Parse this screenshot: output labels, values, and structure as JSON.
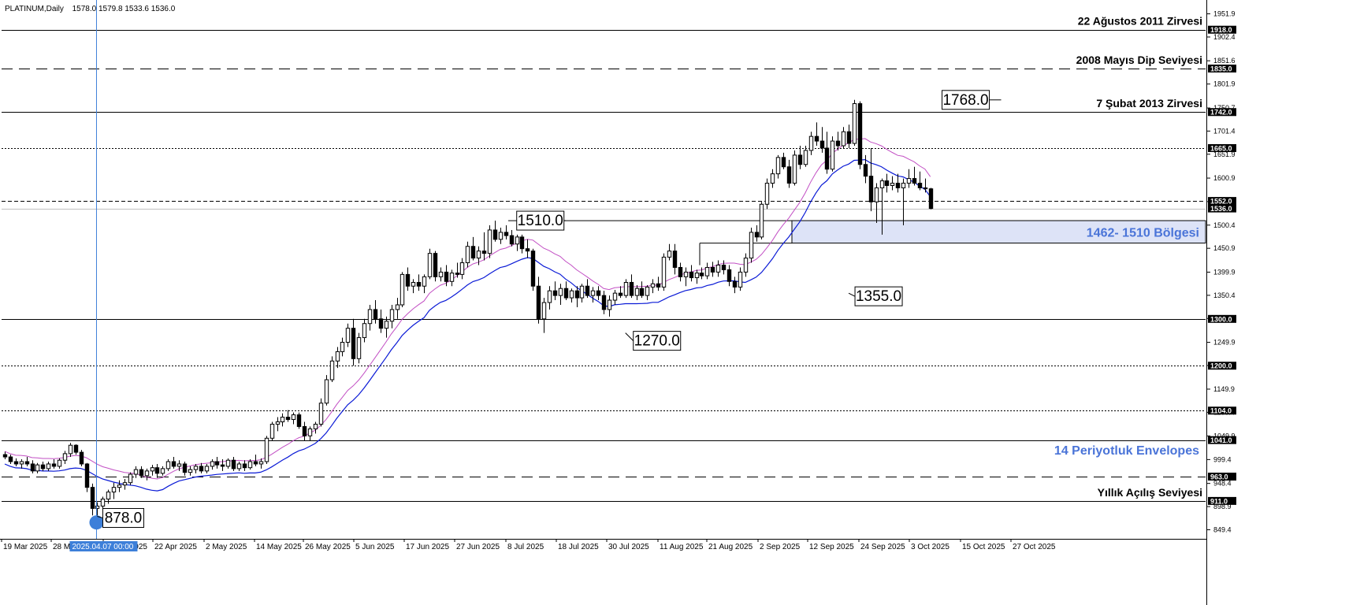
{
  "chart_header": {
    "symbol": "PLATINUM,Daily",
    "ohlc": "1578.0 1579.8 1533.6 1536.0"
  },
  "colors": {
    "envelope_lower": "#0a1ad6",
    "envelope_upper": "#c24fc4",
    "zone_fill": "#dde3f7",
    "blue_label": "#4a74d8",
    "crosshair": "#3d7fd9",
    "tag_bg": "#000000"
  },
  "price_axis": {
    "ticks": [
      "1951.9",
      "1902.4",
      "1851.6",
      "1801.9",
      "1750.7",
      "1701.4",
      "1651.9",
      "1600.9",
      "1550.7",
      "1500.4",
      "1450.9",
      "1399.9",
      "1350.4",
      "1300.9",
      "1249.9",
      "1200.4",
      "1149.9",
      "1100.4",
      "1049.9",
      "999.4",
      "948.4",
      "898.9",
      "849.4"
    ]
  },
  "time_axis": {
    "labels": [
      "19 Mar 2025",
      "28 Mar 2025",
      "10 Apr 2025",
      "22 Apr 2025",
      "2 May 2025",
      "14 May 2025",
      "26 May 2025",
      "5 Jun 2025",
      "17 Jun 2025",
      "27 Jun 2025",
      "8 Jul 2025",
      "18 Jul 2025",
      "30 Jul 2025",
      "11 Aug 2025",
      "21 Aug 2025",
      "2 Sep 2025",
      "12 Sep 2025",
      "24 Sep 2025",
      "3 Oct 2025",
      "15 Oct 2025",
      "27 Oct 2025"
    ],
    "crosshair_label": "2025.04.07 00:00"
  },
  "levels": [
    {
      "price": 1918.0,
      "label": "1918.0",
      "style": "solid",
      "annotation": "22 Ağustos 2011 Zirvesi"
    },
    {
      "price": 1835.0,
      "label": "1835.0",
      "style": "longdash",
      "annotation": "2008 Mayıs Dip Seviyesi"
    },
    {
      "price": 1742.0,
      "label": "1742.0",
      "style": "solid",
      "annotation": "7 Şubat 2013 Zirvesi"
    },
    {
      "price": 1665.0,
      "label": "1665.0",
      "style": "dotted",
      "annotation": ""
    },
    {
      "price": 1552.0,
      "label": "1552.0",
      "style": "dashed",
      "annotation": ""
    },
    {
      "price": 1536.0,
      "label": "1536.0",
      "style": "current",
      "annotation": ""
    },
    {
      "price": 1300.0,
      "label": "1300.0",
      "style": "solid",
      "annotation": ""
    },
    {
      "price": 1200.0,
      "label": "1200.0",
      "style": "dotted",
      "annotation": ""
    },
    {
      "price": 1104.0,
      "label": "1104.0",
      "style": "dotted",
      "annotation": ""
    },
    {
      "price": 1041.0,
      "label": "1041.0",
      "style": "solid",
      "annotation": ""
    },
    {
      "price": 963.0,
      "label": "963.0",
      "style": "longdash",
      "annotation": ""
    },
    {
      "price": 911.0,
      "label": "911.0",
      "style": "solid",
      "annotation": "Yıllık Açılış Seviyesi"
    }
  ],
  "zone": {
    "from": 1462,
    "to": 1510,
    "label": "1462- 1510 Bölgesi"
  },
  "envelope_label": "14 Periyotluk Envelopes",
  "price_boxes": [
    {
      "text": "1768.0",
      "price": 1768,
      "bar": 183
    },
    {
      "text": "1510.0",
      "price": 1510,
      "bar": 103
    },
    {
      "text": "1355.0",
      "price": 1355,
      "bar": 155
    },
    {
      "text": "1270.0",
      "price": 1270,
      "bar": 114
    },
    {
      "text": "878.0",
      "price": 878,
      "bar": 17
    }
  ],
  "chart_data": {
    "type": "candlestick",
    "title": "PLATINUM,Daily",
    "ylim": [
      830,
      1968
    ],
    "time_range": [
      "2025-03-14",
      "2025-11-04"
    ],
    "series": [
      {
        "name": "PLATINUM",
        "ohlc": [
          [
            1010,
            1016,
            1000,
            1005
          ],
          [
            1005,
            1010,
            990,
            995
          ],
          [
            995,
            1002,
            985,
            990
          ],
          [
            990,
            1000,
            980,
            995
          ],
          [
            995,
            1005,
            985,
            990
          ],
          [
            990,
            998,
            970,
            975
          ],
          [
            975,
            992,
            970,
            988
          ],
          [
            988,
            995,
            975,
            980
          ],
          [
            980,
            995,
            975,
            990
          ],
          [
            990,
            1000,
            980,
            985
          ],
          [
            985,
            1002,
            980,
            998
          ],
          [
            998,
            1018,
            990,
            1012
          ],
          [
            1012,
            1035,
            1005,
            1030
          ],
          [
            1030,
            1032,
            1010,
            1015
          ],
          [
            1015,
            1020,
            985,
            990
          ],
          [
            990,
            992,
            930,
            940
          ],
          [
            940,
            948,
            880,
            895
          ],
          [
            895,
            908,
            878,
            900
          ],
          [
            900,
            920,
            895,
            915
          ],
          [
            915,
            935,
            905,
            930
          ],
          [
            930,
            950,
            915,
            940
          ],
          [
            940,
            955,
            930,
            945
          ],
          [
            945,
            958,
            935,
            950
          ],
          [
            950,
            972,
            945,
            968
          ],
          [
            968,
            985,
            960,
            978
          ],
          [
            978,
            985,
            960,
            965
          ],
          [
            965,
            980,
            955,
            975
          ],
          [
            975,
            988,
            965,
            982
          ],
          [
            982,
            990,
            960,
            970
          ],
          [
            970,
            985,
            965,
            980
          ],
          [
            980,
            1000,
            975,
            995
          ],
          [
            995,
            1005,
            980,
            985
          ],
          [
            985,
            998,
            975,
            990
          ],
          [
            990,
            995,
            965,
            972
          ],
          [
            972,
            985,
            965,
            978
          ],
          [
            978,
            990,
            970,
            985
          ],
          [
            985,
            992,
            970,
            975
          ],
          [
            975,
            990,
            970,
            985
          ],
          [
            985,
            1000,
            978,
            995
          ],
          [
            995,
            1005,
            980,
            988
          ],
          [
            988,
            1000,
            975,
            985
          ],
          [
            985,
            1002,
            980,
            998
          ],
          [
            998,
            1005,
            975,
            980
          ],
          [
            980,
            995,
            975,
            990
          ],
          [
            990,
            998,
            975,
            982
          ],
          [
            982,
            1000,
            978,
            995
          ],
          [
            995,
            1010,
            985,
            990
          ],
          [
            990,
            1002,
            980,
            995
          ],
          [
            995,
            1050,
            990,
            1045
          ],
          [
            1045,
            1080,
            1040,
            1075
          ],
          [
            1075,
            1090,
            1060,
            1080
          ],
          [
            1080,
            1098,
            1070,
            1090
          ],
          [
            1090,
            1105,
            1080,
            1085
          ],
          [
            1085,
            1100,
            1075,
            1095
          ],
          [
            1095,
            1100,
            1065,
            1070
          ],
          [
            1070,
            1080,
            1040,
            1050
          ],
          [
            1050,
            1070,
            1040,
            1065
          ],
          [
            1065,
            1080,
            1055,
            1075
          ],
          [
            1075,
            1130,
            1070,
            1120
          ],
          [
            1120,
            1180,
            1115,
            1170
          ],
          [
            1170,
            1220,
            1165,
            1210
          ],
          [
            1210,
            1240,
            1195,
            1230
          ],
          [
            1230,
            1260,
            1220,
            1250
          ],
          [
            1250,
            1290,
            1240,
            1280
          ],
          [
            1280,
            1300,
            1200,
            1215
          ],
          [
            1215,
            1270,
            1205,
            1260
          ],
          [
            1260,
            1300,
            1250,
            1290
          ],
          [
            1290,
            1330,
            1275,
            1320
          ],
          [
            1320,
            1340,
            1290,
            1300
          ],
          [
            1300,
            1320,
            1270,
            1280
          ],
          [
            1280,
            1305,
            1260,
            1295
          ],
          [
            1295,
            1330,
            1280,
            1320
          ],
          [
            1320,
            1345,
            1300,
            1330
          ],
          [
            1330,
            1400,
            1325,
            1395
          ],
          [
            1395,
            1410,
            1360,
            1370
          ],
          [
            1370,
            1385,
            1355,
            1378
          ],
          [
            1378,
            1395,
            1360,
            1370
          ],
          [
            1370,
            1395,
            1355,
            1390
          ],
          [
            1390,
            1450,
            1385,
            1440
          ],
          [
            1440,
            1445,
            1380,
            1390
          ],
          [
            1390,
            1410,
            1380,
            1400
          ],
          [
            1400,
            1415,
            1370,
            1380
          ],
          [
            1380,
            1405,
            1370,
            1398
          ],
          [
            1398,
            1420,
            1388,
            1395
          ],
          [
            1395,
            1430,
            1385,
            1420
          ],
          [
            1420,
            1465,
            1410,
            1455
          ],
          [
            1455,
            1475,
            1425,
            1430
          ],
          [
            1430,
            1455,
            1415,
            1445
          ],
          [
            1445,
            1485,
            1425,
            1440
          ],
          [
            1440,
            1500,
            1430,
            1490
          ],
          [
            1490,
            1510,
            1465,
            1470
          ],
          [
            1470,
            1495,
            1460,
            1485
          ],
          [
            1485,
            1500,
            1470,
            1478
          ],
          [
            1478,
            1490,
            1455,
            1460
          ],
          [
            1460,
            1480,
            1445,
            1475
          ],
          [
            1475,
            1480,
            1440,
            1450
          ],
          [
            1450,
            1470,
            1430,
            1445
          ],
          [
            1445,
            1450,
            1360,
            1370
          ],
          [
            1370,
            1390,
            1290,
            1300
          ],
          [
            1300,
            1345,
            1270,
            1335
          ],
          [
            1335,
            1370,
            1320,
            1360
          ],
          [
            1360,
            1380,
            1340,
            1350
          ],
          [
            1350,
            1375,
            1330,
            1365
          ],
          [
            1365,
            1380,
            1340,
            1345
          ],
          [
            1345,
            1365,
            1335,
            1360
          ],
          [
            1360,
            1370,
            1325,
            1345
          ],
          [
            1345,
            1375,
            1335,
            1370
          ],
          [
            1370,
            1385,
            1345,
            1350
          ],
          [
            1350,
            1368,
            1335,
            1360
          ],
          [
            1360,
            1370,
            1340,
            1350
          ],
          [
            1350,
            1360,
            1310,
            1320
          ],
          [
            1320,
            1350,
            1305,
            1340
          ],
          [
            1340,
            1362,
            1330,
            1355
          ],
          [
            1355,
            1370,
            1345,
            1350
          ],
          [
            1350,
            1385,
            1345,
            1378
          ],
          [
            1378,
            1395,
            1345,
            1350
          ],
          [
            1350,
            1372,
            1340,
            1365
          ],
          [
            1365,
            1380,
            1345,
            1350
          ],
          [
            1350,
            1372,
            1340,
            1368
          ],
          [
            1368,
            1385,
            1355,
            1375
          ],
          [
            1375,
            1390,
            1360,
            1368
          ],
          [
            1368,
            1440,
            1360,
            1432
          ],
          [
            1432,
            1460,
            1425,
            1445
          ],
          [
            1445,
            1460,
            1395,
            1410
          ],
          [
            1410,
            1420,
            1380,
            1390
          ],
          [
            1390,
            1410,
            1370,
            1400
          ],
          [
            1400,
            1415,
            1380,
            1388
          ],
          [
            1388,
            1405,
            1375,
            1398
          ],
          [
            1398,
            1410,
            1385,
            1392
          ],
          [
            1392,
            1420,
            1385,
            1410
          ],
          [
            1410,
            1422,
            1390,
            1400
          ],
          [
            1400,
            1425,
            1390,
            1415
          ],
          [
            1415,
            1425,
            1395,
            1405
          ],
          [
            1405,
            1415,
            1370,
            1380
          ],
          [
            1380,
            1390,
            1355,
            1368
          ],
          [
            1368,
            1410,
            1360,
            1400
          ],
          [
            1400,
            1440,
            1390,
            1430
          ],
          [
            1430,
            1495,
            1420,
            1485
          ],
          [
            1485,
            1500,
            1465,
            1475
          ],
          [
            1475,
            1550,
            1470,
            1545
          ],
          [
            1545,
            1600,
            1535,
            1590
          ],
          [
            1590,
            1620,
            1580,
            1610
          ],
          [
            1610,
            1650,
            1600,
            1645
          ],
          [
            1645,
            1655,
            1620,
            1625
          ],
          [
            1625,
            1640,
            1580,
            1590
          ],
          [
            1590,
            1660,
            1585,
            1650
          ],
          [
            1650,
            1670,
            1620,
            1630
          ],
          [
            1630,
            1670,
            1625,
            1660
          ],
          [
            1660,
            1700,
            1650,
            1690
          ],
          [
            1690,
            1720,
            1670,
            1680
          ],
          [
            1680,
            1710,
            1655,
            1665
          ],
          [
            1665,
            1700,
            1610,
            1620
          ],
          [
            1620,
            1690,
            1615,
            1680
          ],
          [
            1680,
            1700,
            1660,
            1670
          ],
          [
            1670,
            1710,
            1665,
            1700
          ],
          [
            1700,
            1715,
            1665,
            1675
          ],
          [
            1675,
            1768,
            1670,
            1760
          ],
          [
            1760,
            1765,
            1620,
            1630
          ],
          [
            1630,
            1650,
            1590,
            1605
          ],
          [
            1605,
            1665,
            1530,
            1550
          ],
          [
            1550,
            1590,
            1505,
            1580
          ],
          [
            1580,
            1600,
            1480,
            1595
          ],
          [
            1595,
            1610,
            1570,
            1585
          ],
          [
            1585,
            1605,
            1575,
            1590
          ],
          [
            1590,
            1610,
            1570,
            1580
          ],
          [
            1580,
            1600,
            1500,
            1590
          ],
          [
            1590,
            1620,
            1580,
            1600
          ],
          [
            1600,
            1625,
            1585,
            1590
          ],
          [
            1590,
            1615,
            1575,
            1580
          ],
          [
            1580,
            1600,
            1570,
            1578
          ],
          [
            1578,
            1580,
            1534,
            1536
          ]
        ]
      },
      {
        "name": "",
        "values": []
      },
      {
        "name": "",
        "values": []
      }
    ]
  }
}
